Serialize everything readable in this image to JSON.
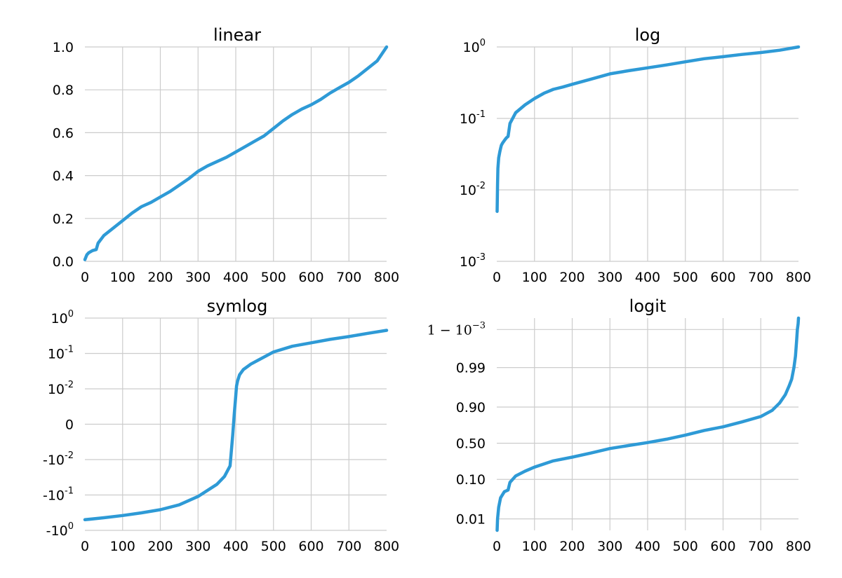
{
  "chart_data": [
    {
      "type": "line",
      "title": "linear",
      "yscale": "linear",
      "xlim": [
        0,
        800
      ],
      "ylim": [
        0,
        1
      ],
      "xticks": [
        0,
        100,
        200,
        300,
        400,
        500,
        600,
        700,
        800
      ],
      "xtick_labels": [
        "0",
        "100",
        "200",
        "300",
        "400",
        "500",
        "600",
        "700",
        "800"
      ],
      "yticks": [
        {
          "value": 0.0,
          "label": "0.0"
        },
        {
          "value": 0.2,
          "label": "0.2"
        },
        {
          "value": 0.4,
          "label": "0.4"
        },
        {
          "value": 0.6,
          "label": "0.6"
        },
        {
          "value": 0.8,
          "label": "0.8"
        },
        {
          "value": 1.0,
          "label": "1.0"
        }
      ],
      "grid": true,
      "color": "#2e9ad6",
      "series": [
        {
          "x": [
            0,
            5,
            10,
            20,
            30,
            35,
            50,
            75,
            100,
            125,
            150,
            175,
            200,
            225,
            250,
            275,
            300,
            325,
            350,
            375,
            400,
            425,
            450,
            475,
            500,
            525,
            550,
            575,
            600,
            625,
            650,
            675,
            700,
            725,
            750,
            775,
            800
          ],
          "y": [
            0.008,
            0.03,
            0.04,
            0.05,
            0.055,
            0.085,
            0.12,
            0.155,
            0.19,
            0.225,
            0.255,
            0.275,
            0.3,
            0.325,
            0.355,
            0.385,
            0.42,
            0.445,
            0.465,
            0.485,
            0.51,
            0.535,
            0.56,
            0.585,
            0.62,
            0.655,
            0.685,
            0.71,
            0.73,
            0.755,
            0.785,
            0.81,
            0.835,
            0.865,
            0.9,
            0.935,
            1.0
          ]
        }
      ]
    },
    {
      "type": "line",
      "title": "log",
      "yscale": "log",
      "xlim": [
        0,
        800
      ],
      "ylim": [
        0.001,
        1
      ],
      "xticks": [
        0,
        100,
        200,
        300,
        400,
        500,
        600,
        700,
        800
      ],
      "xtick_labels": [
        "0",
        "100",
        "200",
        "300",
        "400",
        "500",
        "600",
        "700",
        "800"
      ],
      "yticks": [
        {
          "value": 1,
          "base": "10",
          "exp": "0"
        },
        {
          "value": 0.1,
          "base": "10",
          "exp": "-1"
        },
        {
          "value": 0.01,
          "base": "10",
          "exp": "-2"
        },
        {
          "value": 0.001,
          "base": "10",
          "exp": "-3"
        }
      ],
      "grid": true,
      "color": "#2e9ad6",
      "series": [
        {
          "x": [
            1,
            2,
            3,
            5,
            8,
            10,
            12,
            15,
            20,
            25,
            30,
            35,
            50,
            75,
            100,
            125,
            150,
            175,
            200,
            250,
            300,
            350,
            400,
            450,
            500,
            550,
            600,
            650,
            700,
            750,
            800
          ],
          "y": [
            0.005,
            0.012,
            0.02,
            0.028,
            0.034,
            0.038,
            0.042,
            0.045,
            0.049,
            0.053,
            0.056,
            0.085,
            0.12,
            0.155,
            0.19,
            0.225,
            0.255,
            0.275,
            0.3,
            0.355,
            0.42,
            0.465,
            0.51,
            0.56,
            0.62,
            0.685,
            0.73,
            0.785,
            0.835,
            0.9,
            1.0
          ]
        }
      ]
    },
    {
      "type": "line",
      "title": "symlog",
      "yscale": "symlog",
      "xlim": [
        0,
        800
      ],
      "ylim": [
        -1,
        1
      ],
      "xticks": [
        0,
        100,
        200,
        300,
        400,
        500,
        600,
        700,
        800
      ],
      "xtick_labels": [
        "0",
        "100",
        "200",
        "300",
        "400",
        "500",
        "600",
        "700",
        "800"
      ],
      "yticks": [
        {
          "value": 1,
          "base": "10",
          "exp": "0"
        },
        {
          "value": 0.1,
          "base": "10",
          "exp": "-1"
        },
        {
          "value": 0.01,
          "base": "10",
          "exp": "-2"
        },
        {
          "value": 0,
          "label": "0"
        },
        {
          "value": -0.01,
          "base": "-10",
          "exp": "-2"
        },
        {
          "value": -0.1,
          "base": "-10",
          "exp": "-1"
        },
        {
          "value": -1,
          "base": "-10",
          "exp": "0"
        }
      ],
      "grid": true,
      "color": "#2e9ad6",
      "series": [
        {
          "x": [
            0,
            50,
            100,
            150,
            200,
            250,
            300,
            350,
            370,
            385,
            392,
            396,
            400,
            402,
            405,
            410,
            420,
            440,
            460,
            500,
            550,
            600,
            650,
            700,
            750,
            800
          ],
          "y": [
            -0.5,
            -0.44,
            -0.38,
            -0.32,
            -0.26,
            -0.19,
            -0.11,
            -0.05,
            -0.03,
            -0.015,
            -0.003,
            0.003,
            0.008,
            0.012,
            0.017,
            0.025,
            0.035,
            0.05,
            0.065,
            0.11,
            0.16,
            0.2,
            0.25,
            0.3,
            0.37,
            0.45
          ]
        }
      ]
    },
    {
      "type": "line",
      "title": "logit",
      "yscale": "logit",
      "xlim": [
        0,
        800
      ],
      "ylim": [
        0.005,
        0.9995
      ],
      "xticks": [
        0,
        100,
        200,
        300,
        400,
        500,
        600,
        700,
        800
      ],
      "xtick_labels": [
        "0",
        "100",
        "200",
        "300",
        "400",
        "500",
        "600",
        "700",
        "800"
      ],
      "yticks": [
        {
          "value": 0.999,
          "label": "1 − 10",
          "exp": "−3",
          "math": true
        },
        {
          "value": 0.99,
          "label": "0.99"
        },
        {
          "value": 0.9,
          "label": "0.90"
        },
        {
          "value": 0.5,
          "label": "0.50"
        },
        {
          "value": 0.1,
          "label": "0.10"
        },
        {
          "value": 0.01,
          "label": "0.01"
        }
      ],
      "grid": true,
      "color": "#2e9ad6",
      "series": [
        {
          "x": [
            1,
            2,
            5,
            10,
            20,
            30,
            35,
            50,
            75,
            100,
            150,
            200,
            250,
            300,
            350,
            400,
            450,
            500,
            550,
            600,
            650,
            700,
            730,
            750,
            765,
            775,
            782,
            788,
            792,
            795,
            797,
            799,
            800
          ],
          "y": [
            0.005,
            0.01,
            0.02,
            0.035,
            0.05,
            0.055,
            0.085,
            0.12,
            0.155,
            0.19,
            0.255,
            0.3,
            0.355,
            0.42,
            0.465,
            0.51,
            0.56,
            0.62,
            0.685,
            0.73,
            0.785,
            0.835,
            0.88,
            0.92,
            0.95,
            0.97,
            0.98,
            0.99,
            0.995,
            0.998,
            0.999,
            0.9993,
            0.9995
          ]
        }
      ]
    }
  ]
}
